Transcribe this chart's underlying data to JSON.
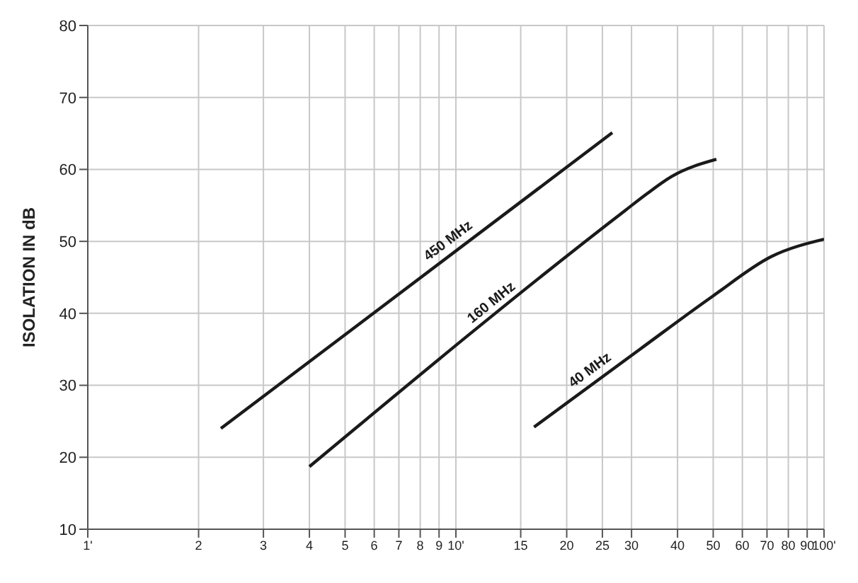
{
  "chart_data": {
    "type": "line",
    "ylabel": "ISOLATION IN dB",
    "log": "x",
    "grid": true,
    "legend": false,
    "marker": "none",
    "line_style": "solid",
    "xlim": [
      1,
      100
    ],
    "ylim": [
      10,
      80
    ],
    "xticks": [
      {
        "value": 1,
        "label": "1'"
      },
      2,
      3,
      4,
      5,
      6,
      7,
      8,
      9,
      {
        "value": 10,
        "label": "10'"
      },
      15,
      20,
      25,
      30,
      40,
      50,
      60,
      70,
      80,
      90,
      {
        "value": 100,
        "label": "100'"
      }
    ],
    "yticks": [
      10,
      20,
      30,
      40,
      50,
      60,
      70,
      80
    ],
    "series": [
      {
        "name": "450 MHz",
        "color": "#1a1a1a",
        "x": [
          2.3,
          26.6
        ],
        "values": [
          24,
          65.1
        ]
      },
      {
        "name": "160 MHz",
        "color": "#1a1a1a",
        "x": [
          4,
          29,
          33,
          38.5,
          51
        ],
        "values": [
          18.7,
          54.4,
          56.6,
          59,
          61.4
        ]
      },
      {
        "name": "40 MHz",
        "color": "#1a1a1a",
        "x": [
          16.3,
          31.6,
          49.9,
          72,
          100
        ],
        "values": [
          24.2,
          35,
          42.4,
          47.9,
          50.3
        ]
      }
    ]
  }
}
